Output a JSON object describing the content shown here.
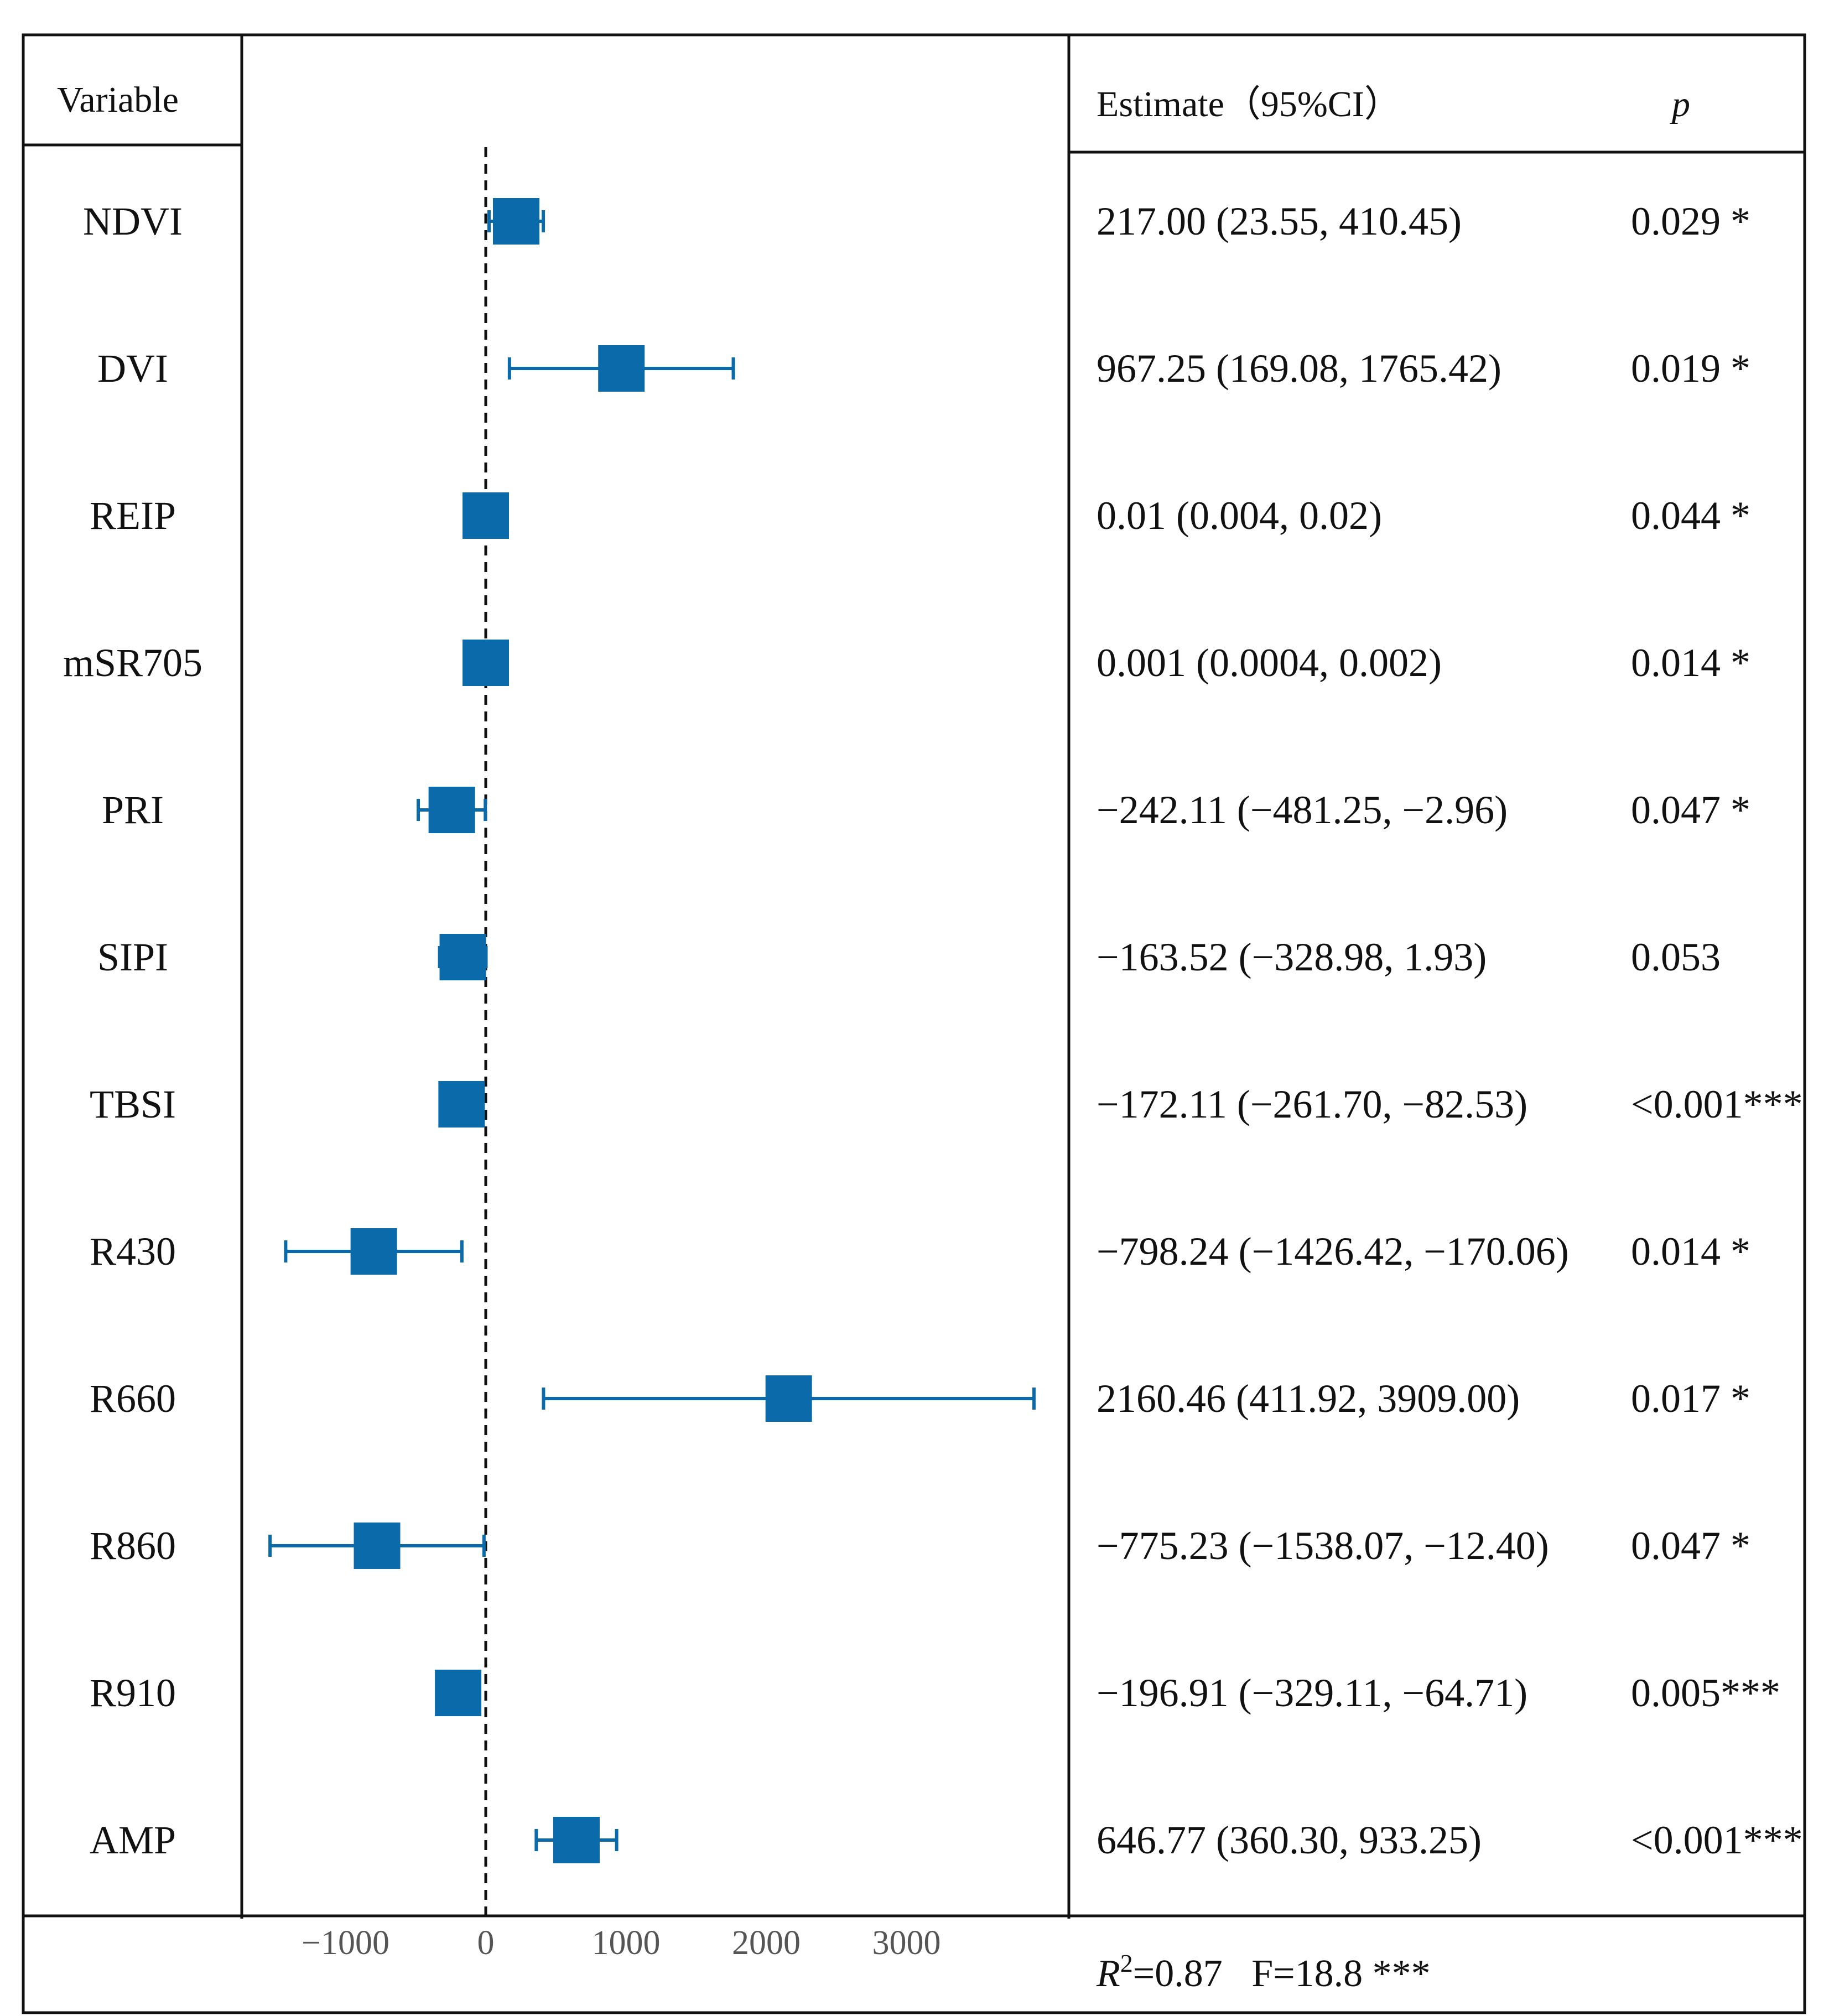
{
  "headers": {
    "variable": "Variable",
    "estimate": "Estimate（95%CI）",
    "p": "p"
  },
  "footer": {
    "r2_label": "R",
    "r2_sup": "2",
    "r2_rest": "=0.87   F=18.8 ***"
  },
  "colors": {
    "marker": "#0b6aa9",
    "reference_line": "#111111",
    "frame": "#111111",
    "tick_text": "#555555"
  },
  "chart_data": {
    "type": "forest",
    "xlim": [
      -1550,
      3950
    ],
    "x_ticks": [
      -1000,
      0,
      1000,
      2000,
      3000
    ],
    "x_tick_labels": [
      "−1000",
      "0",
      "1000",
      "2000",
      "3000"
    ],
    "reference_value": 0,
    "rows": [
      {
        "variable": "NDVI",
        "estimate": 217.0,
        "lower": 23.55,
        "upper": 410.45,
        "estimate_text": "217.00 (23.55, 410.45)",
        "p": "0.029 *"
      },
      {
        "variable": "DVI",
        "estimate": 967.25,
        "lower": 169.08,
        "upper": 1765.42,
        "estimate_text": "967.25 (169.08, 1765.42)",
        "p": "0.019 *"
      },
      {
        "variable": "REIP",
        "estimate": 0.01,
        "lower": 0.004,
        "upper": 0.02,
        "estimate_text": "0.01 (0.004, 0.02)",
        "p": "0.044 *"
      },
      {
        "variable": "mSR705",
        "estimate": 0.001,
        "lower": 0.0004,
        "upper": 0.002,
        "estimate_text": "0.001 (0.0004, 0.002)",
        "p": "0.014  *"
      },
      {
        "variable": "PRI",
        "estimate": -242.11,
        "lower": -481.25,
        "upper": -2.96,
        "estimate_text": "−242.11 (−481.25, −2.96)",
        "p": "0.047 *"
      },
      {
        "variable": "SIPI",
        "estimate": -163.52,
        "lower": -328.98,
        "upper": 1.93,
        "estimate_text": "−163.52 (−328.98, 1.93)",
        "p": "0.053"
      },
      {
        "variable": "TBSI",
        "estimate": -172.11,
        "lower": -261.7,
        "upper": -82.53,
        "estimate_text": "−172.11 (−261.70, −82.53)",
        "p": "<0.001***"
      },
      {
        "variable": "R430",
        "estimate": -798.24,
        "lower": -1426.42,
        "upper": -170.06,
        "estimate_text": "−798.24 (−1426.42, −170.06)",
        "p": "0.014 *"
      },
      {
        "variable": "R660",
        "estimate": 2160.46,
        "lower": 411.92,
        "upper": 3909.0,
        "estimate_text": "2160.46 (411.92, 3909.00)",
        "p": "0.017 *"
      },
      {
        "variable": "R860",
        "estimate": -775.23,
        "lower": -1538.07,
        "upper": -12.4,
        "estimate_text": "−775.23 (−1538.07, −12.40)",
        "p": "0.047 *"
      },
      {
        "variable": "R910",
        "estimate": -196.91,
        "lower": -329.11,
        "upper": -64.71,
        "estimate_text": "−196.91 (−329.11, −64.71)",
        "p": "0.005***"
      },
      {
        "variable": "AMP",
        "estimate": 646.77,
        "lower": 360.3,
        "upper": 933.25,
        "estimate_text": "646.77 (360.30, 933.25)",
        "p": "<0.001***"
      }
    ]
  }
}
